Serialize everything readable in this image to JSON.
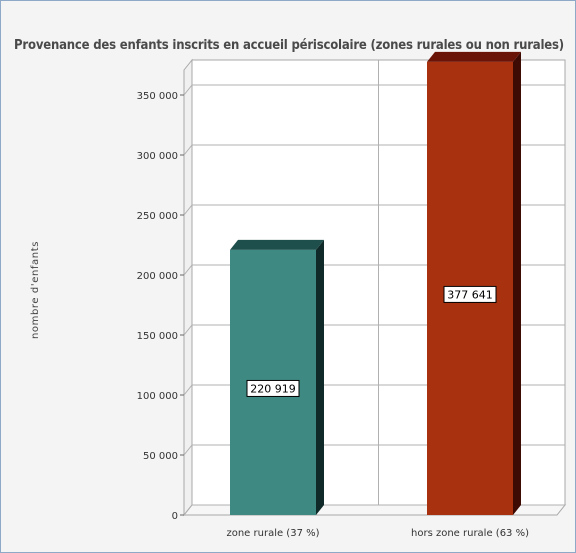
{
  "chart_data": {
    "type": "bar",
    "title": "Provenance des enfants inscrits en accueil périscolaire (zones rurales ou non rurales)",
    "ylabel": "nombre d'enfants",
    "xlabel": "",
    "categories": [
      "zone rurale (37 %)",
      "hors zone rurale (63 %)"
    ],
    "values": [
      220919,
      377641
    ],
    "data_labels": [
      "220 919",
      "377 641"
    ],
    "bar_colors": [
      "#3e8a82",
      "#a8320f"
    ],
    "bar_top_colors": [
      "#1f4f4c",
      "#6a1408"
    ],
    "bar_side_colors": [
      "#0f2a28",
      "#3d0a04"
    ],
    "ylim": [
      0,
      350000
    ],
    "yticks": [
      0,
      50000,
      100000,
      150000,
      200000,
      250000,
      300000,
      350000
    ],
    "ytick_labels": [
      "0",
      "50 000",
      "100 000",
      "150 000",
      "200 000",
      "250 000",
      "300 000",
      "350 000"
    ],
    "grid": true,
    "legend": "none"
  }
}
